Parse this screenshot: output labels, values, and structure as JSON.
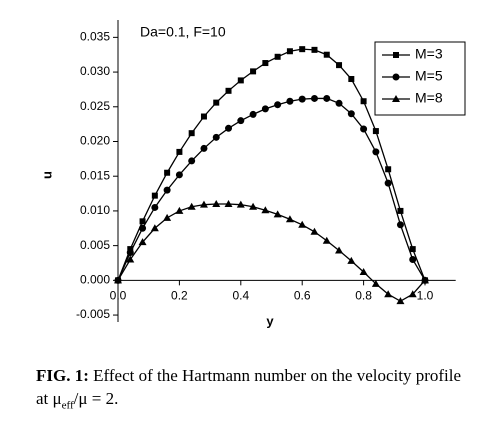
{
  "chart_data": {
    "type": "line",
    "annotation": "Da=0.1, F=10",
    "x_label": "y",
    "y_label": "u",
    "x": [
      0,
      0.04,
      0.08,
      0.12,
      0.16,
      0.2,
      0.24,
      0.28,
      0.32,
      0.36,
      0.4,
      0.44,
      0.48,
      0.52,
      0.56,
      0.6,
      0.64,
      0.68,
      0.72,
      0.76,
      0.8,
      0.84,
      0.88,
      0.92,
      0.96,
      1.0
    ],
    "series": [
      {
        "name": "M=3",
        "color": "#000000",
        "marker": "square",
        "values": [
          0,
          0.0045,
          0.0085,
          0.0122,
          0.0155,
          0.0185,
          0.0212,
          0.0236,
          0.0256,
          0.0273,
          0.0288,
          0.0301,
          0.0313,
          0.0322,
          0.033,
          0.0333,
          0.0332,
          0.0325,
          0.031,
          0.029,
          0.0258,
          0.0215,
          0.016,
          0.01,
          0.0045,
          0
        ]
      },
      {
        "name": "M=5",
        "color": "#000000",
        "marker": "circle",
        "values": [
          0,
          0.004,
          0.0075,
          0.0105,
          0.013,
          0.0152,
          0.0172,
          0.019,
          0.0206,
          0.0219,
          0.023,
          0.0239,
          0.0247,
          0.0253,
          0.0258,
          0.0261,
          0.0262,
          0.0262,
          0.0255,
          0.024,
          0.0218,
          0.0185,
          0.014,
          0.008,
          0.003,
          0
        ]
      },
      {
        "name": "M=8",
        "color": "#000000",
        "marker": "triangle",
        "values": [
          0,
          0.003,
          0.0055,
          0.0075,
          0.009,
          0.01,
          0.0106,
          0.0109,
          0.011,
          0.011,
          0.0109,
          0.0106,
          0.0101,
          0.0095,
          0.0088,
          0.008,
          0.007,
          0.0057,
          0.0043,
          0.0028,
          0.0012,
          -0.0005,
          -0.002,
          -0.003,
          -0.002,
          0
        ]
      }
    ],
    "xlim": [
      0,
      1.1
    ],
    "ylim": [
      -0.006,
      0.0375
    ],
    "xticks": [
      {
        "value": 0,
        "label": "0.0"
      },
      0.2,
      0.4,
      0.6,
      0.8,
      {
        "value": 1,
        "label": "1.0"
      }
    ],
    "yticks": [
      -0.005,
      {
        "value": 0,
        "label": "0.000"
      },
      0.005,
      {
        "value": 0.01,
        "label": "0.010"
      },
      0.015,
      {
        "value": 0.02,
        "label": "0.020"
      },
      0.025,
      {
        "value": 0.03,
        "label": "0.030"
      },
      0.035
    ],
    "legend": "upper right",
    "grid": false
  },
  "caption": {
    "label": "FIG. 1:",
    "text": "Effect of the Hartmann number on the velocity profile at μ",
    "subscript": "eff",
    "text_after": "/μ = 2."
  }
}
